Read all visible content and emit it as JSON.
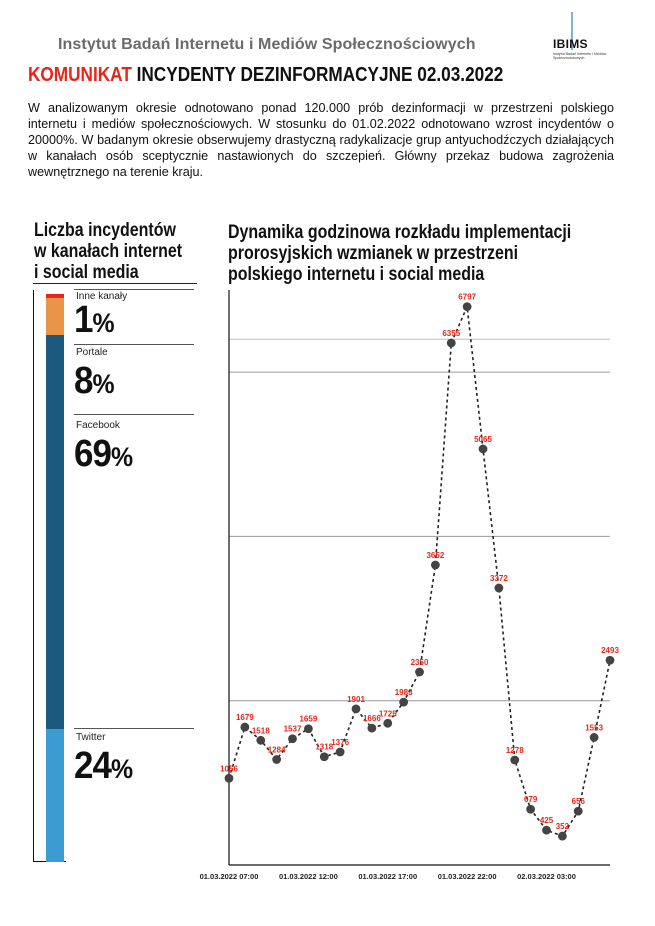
{
  "header": {
    "org": "Instytut Badań Internetu i Mediów Społecznościowych",
    "logo_text": "IBIMS",
    "logo_sub": "Instytut Badań Internetu i Mediów Społecznościowych",
    "title_prefix": "KOMUNIKAT",
    "title_rest": " INCYDENTY DEZINFORMACYJNE 02.03.2022"
  },
  "intro": "W analizowanym okresie odnotowano ponad 120.000 prób dezinformacji w przestrzeni polskiego internetu i mediów społecznościowych. W stosunku do 01.02.2022 odnotowano wzrost incydentów o 20000%. W badanym okresie obserwujemy drastyczną radykalizacje grup antyuchodźczych działających w kanałach osób sceptycznie nastawionych do szczepień. Główny przekaz budowa zagrożenia wewnętrznego na terenie kraju.",
  "colors": {
    "accent_red": "#e8251a",
    "inne": "#e8954a",
    "portale": "#1b5a7e",
    "facebook": "#1b5a7e",
    "twitter": "#3c9bd0",
    "line": "#222222",
    "marker": "#444444"
  },
  "chart_data": [
    {
      "type": "stacked-bar",
      "title": "Liczba incydentów w kanałach internet i social media",
      "categories": [
        {
          "name": "Inne kanały",
          "value_label": "1",
          "percent_sign": "%",
          "value": 1
        },
        {
          "name": "Portale",
          "value_label": "8",
          "percent_sign": "%",
          "value": 8
        },
        {
          "name": "Facebook",
          "value_label": "69",
          "percent_sign": "%",
          "value": 69
        },
        {
          "name": "Twitter",
          "value_label": "24",
          "percent_sign": "%",
          "value": 24
        }
      ]
    },
    {
      "type": "line",
      "title": "Dynamika godzinowa rozkładu implementacji prorosyjskich wzmianek w przestrzeni polskiego internetu i social media",
      "x_ticks": [
        "01.03.2022 07:00",
        "01.03.2022 12:00",
        "01.03.2022 17:00",
        "01.03.2022 22:00",
        "02.03.2022 03:00"
      ],
      "tick_indices": [
        0,
        5,
        10,
        15,
        20
      ],
      "values": [
        1056,
        1679,
        1518,
        1284,
        1537,
        1659,
        1318,
        1376,
        1901,
        1666,
        1725,
        1983,
        2350,
        3652,
        6355,
        6797,
        5065,
        3372,
        1278,
        679,
        425,
        352,
        656,
        1553,
        2493
      ],
      "labels": [
        "1056",
        "1679",
        "1518",
        "1284",
        "1537",
        "1659",
        "1318",
        "1376",
        "1901",
        "1666",
        "1725",
        "1983",
        "2350",
        "3652",
        "6355",
        "6797",
        "5065",
        "3372",
        "1278",
        "679",
        "425",
        "352",
        "656",
        "1553",
        "2493"
      ],
      "ylim": [
        0,
        7000
      ],
      "gridlines": [
        2000,
        4000,
        6000
      ],
      "xlabel": "",
      "ylabel": ""
    }
  ]
}
